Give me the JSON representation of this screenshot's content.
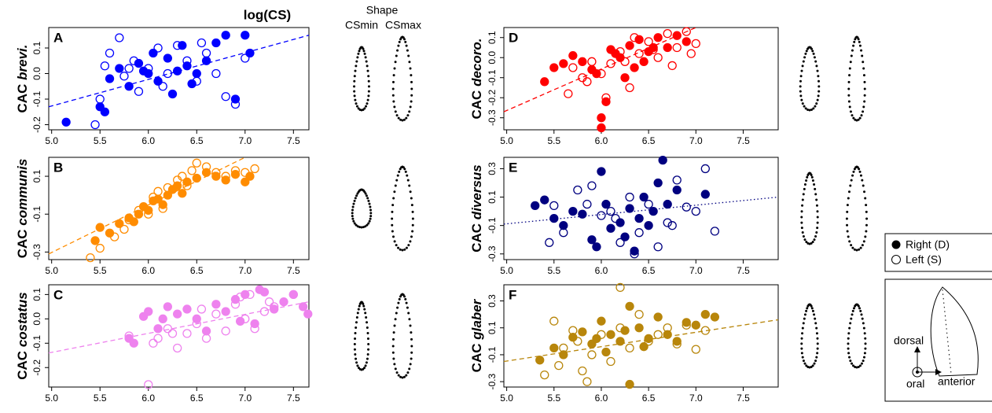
{
  "header": {
    "title": "log(CS)",
    "shape_title": "Shape",
    "shape_min": "CSmin",
    "shape_max": "CSmax"
  },
  "legend": {
    "entries": [
      {
        "label": "Right (D)",
        "marker": "filled"
      },
      {
        "label": "Left (S)",
        "marker": "open"
      }
    ]
  },
  "inset": {
    "dorsal": "dorsal",
    "oral": "oral",
    "anterior": "anterior"
  },
  "chart_data": [
    {
      "type": "scatter",
      "panel": "A",
      "ylabel_prefix": "CAC",
      "ylabel_species": "brevi.",
      "color": "#0000ff",
      "xlim": [
        4.97,
        7.66
      ],
      "ylim": [
        -0.22,
        0.18
      ],
      "xticks": [
        {
          "value": 5,
          "label": "5.0"
        },
        5.5,
        {
          "value": 6,
          "label": "6.0"
        },
        6.5,
        {
          "value": 7,
          "label": "7.0"
        },
        7.5
      ],
      "yticks": [
        -0.2,
        -0.1,
        {
          "value": 0,
          "label": "0.0"
        },
        0.1
      ],
      "fit": {
        "x": [
          4.97,
          7.66
        ],
        "y": [
          -0.13,
          0.15
        ],
        "style": "dashed"
      },
      "series": [
        {
          "marker": "filled",
          "x": [
            5.15,
            5.5,
            5.55,
            5.6,
            5.7,
            5.8,
            5.9,
            6.0,
            6.05,
            6.1,
            6.2,
            6.3,
            6.35,
            6.4,
            6.5,
            6.6,
            6.7,
            6.8,
            6.9,
            7.0,
            7.05,
            6.45,
            6.25,
            5.95
          ],
          "y": [
            -0.19,
            -0.13,
            -0.15,
            -0.02,
            0.02,
            -0.05,
            0.04,
            0.0,
            0.08,
            -0.03,
            0.06,
            0.01,
            0.11,
            0.03,
            0.0,
            0.05,
            0.12,
            0.15,
            -0.1,
            0.15,
            0.08,
            -0.04,
            -0.08,
            0.01
          ]
        },
        {
          "marker": "open",
          "x": [
            5.45,
            5.5,
            5.55,
            5.6,
            5.7,
            5.75,
            5.85,
            5.9,
            6.0,
            6.1,
            6.2,
            6.3,
            6.4,
            6.5,
            6.6,
            6.7,
            6.8,
            6.9,
            7.0,
            6.15,
            5.8,
            6.55
          ],
          "y": [
            -0.2,
            -0.1,
            0.03,
            0.08,
            0.14,
            -0.01,
            0.05,
            -0.07,
            0.02,
            0.1,
            0.0,
            0.11,
            0.05,
            -0.03,
            0.08,
            0.0,
            -0.09,
            -0.12,
            0.06,
            -0.05,
            0.02,
            0.12
          ]
        }
      ]
    },
    {
      "type": "scatter",
      "panel": "B",
      "ylabel_prefix": "CAC",
      "ylabel_species": "communis",
      "color": "#ff8c00",
      "xlim": [
        4.97,
        7.66
      ],
      "ylim": [
        -0.34,
        0.2
      ],
      "xticks": [
        {
          "value": 5,
          "label": "5.0"
        },
        5.5,
        {
          "value": 6,
          "label": "6.0"
        },
        6.5,
        {
          "value": 7,
          "label": "7.0"
        },
        7.5
      ],
      "yticks": [
        -0.3,
        -0.1,
        0.1
      ],
      "fit": {
        "x": [
          4.97,
          7.0
        ],
        "y": [
          -0.31,
          0.2
        ],
        "style": "dashed"
      },
      "series": [
        {
          "marker": "filled",
          "x": [
            5.45,
            5.5,
            5.6,
            5.7,
            5.8,
            5.9,
            5.95,
            6.0,
            6.05,
            6.1,
            6.2,
            6.25,
            6.3,
            6.4,
            6.5,
            6.6,
            6.7,
            6.8,
            6.9,
            7.0,
            7.05,
            6.15,
            5.85,
            6.35
          ],
          "y": [
            -0.24,
            -0.17,
            -0.2,
            -0.15,
            -0.12,
            -0.1,
            -0.06,
            -0.08,
            -0.03,
            -0.02,
            0.0,
            0.03,
            0.05,
            0.07,
            0.09,
            0.12,
            0.1,
            0.08,
            0.11,
            0.07,
            0.1,
            -0.05,
            -0.14,
            0.01
          ]
        },
        {
          "marker": "open",
          "x": [
            5.4,
            5.5,
            5.65,
            5.75,
            5.8,
            5.9,
            6.0,
            6.05,
            6.1,
            6.2,
            6.3,
            6.35,
            6.45,
            6.5,
            6.6,
            6.7,
            6.8,
            6.9,
            7.0,
            7.1,
            6.15,
            6.4
          ],
          "y": [
            -0.33,
            -0.28,
            -0.22,
            -0.18,
            -0.13,
            -0.08,
            -0.1,
            -0.01,
            0.02,
            0.04,
            0.08,
            0.1,
            0.13,
            0.17,
            0.15,
            0.12,
            0.1,
            0.13,
            0.12,
            0.14,
            -0.07,
            0.05
          ]
        }
      ]
    },
    {
      "type": "scatter",
      "panel": "C",
      "ylabel_prefix": "CAC",
      "ylabel_species": "costatus",
      "color": "#ee82ee",
      "xlim": [
        4.97,
        7.66
      ],
      "ylim": [
        -0.28,
        0.14
      ],
      "xticks": [
        {
          "value": 5,
          "label": "5.0"
        },
        5.5,
        {
          "value": 6,
          "label": "6.0"
        },
        6.5,
        {
          "value": 7,
          "label": "7.0"
        },
        7.5
      ],
      "yticks": [
        -0.2,
        -0.1,
        {
          "value": 0,
          "label": "0.0"
        },
        0.1
      ],
      "fit": {
        "x": [
          4.97,
          7.66
        ],
        "y": [
          -0.14,
          0.07
        ],
        "style": "dashed"
      },
      "series": [
        {
          "marker": "filled",
          "x": [
            5.8,
            5.85,
            5.95,
            6.0,
            6.1,
            6.15,
            6.2,
            6.3,
            6.4,
            6.5,
            6.6,
            6.7,
            6.8,
            6.9,
            7.0,
            7.1,
            7.2,
            7.3,
            7.4,
            7.5,
            7.6,
            7.65,
            6.95,
            7.15
          ],
          "y": [
            -0.08,
            -0.1,
            0.01,
            0.03,
            -0.04,
            0.0,
            0.05,
            0.02,
            0.04,
            0.0,
            -0.05,
            0.06,
            0.03,
            0.08,
            0.1,
            -0.02,
            0.11,
            0.04,
            0.07,
            0.1,
            0.05,
            0.02,
            -0.01,
            0.12
          ]
        },
        {
          "marker": "open",
          "x": [
            5.8,
            6.0,
            6.05,
            6.1,
            6.2,
            6.3,
            6.4,
            6.5,
            6.55,
            6.6,
            6.7,
            6.8,
            6.9,
            6.95,
            7.0,
            7.05,
            7.1,
            7.2,
            7.25,
            7.3,
            7.5,
            6.25
          ],
          "y": [
            -0.07,
            -0.27,
            -0.1,
            -0.08,
            -0.04,
            -0.12,
            -0.06,
            -0.02,
            0.04,
            -0.08,
            0.02,
            -0.05,
            0.06,
            0.09,
            0.0,
            0.1,
            -0.04,
            0.03,
            0.07,
            0.05,
            0.1,
            -0.06
          ]
        }
      ]
    },
    {
      "type": "scatter",
      "panel": "D",
      "ylabel_prefix": "CAC",
      "ylabel_species": "decoro.",
      "color": "#ff0000",
      "xlim": [
        4.97,
        7.87
      ],
      "ylim": [
        -0.36,
        0.15
      ],
      "xticks": [
        {
          "value": 5,
          "label": "5.0"
        },
        5.5,
        {
          "value": 6,
          "label": "6.0"
        },
        6.5,
        {
          "value": 7,
          "label": "7.0"
        },
        7.5
      ],
      "yticks": [
        -0.3,
        -0.2,
        -0.1,
        {
          "value": 0,
          "label": "0.0"
        },
        0.1
      ],
      "fit": {
        "x": [
          4.97,
          7.0
        ],
        "y": [
          -0.27,
          0.15
        ],
        "style": "dashed"
      },
      "series": [
        {
          "marker": "filled",
          "x": [
            5.4,
            5.5,
            5.6,
            5.7,
            5.8,
            5.9,
            6.0,
            6.0,
            6.05,
            6.1,
            6.2,
            6.3,
            6.35,
            6.4,
            6.5,
            6.6,
            6.7,
            6.8,
            6.9,
            6.45,
            6.25,
            6.15,
            5.95,
            6.55
          ],
          "y": [
            -0.12,
            -0.05,
            -0.03,
            0.01,
            -0.02,
            -0.06,
            -0.3,
            -0.35,
            -0.22,
            0.04,
            0.0,
            0.06,
            -0.05,
            0.09,
            0.03,
            0.1,
            0.05,
            0.11,
            0.08,
            -0.02,
            -0.1,
            0.02,
            -0.08,
            0.05
          ]
        },
        {
          "marker": "open",
          "x": [
            5.65,
            5.7,
            5.8,
            5.9,
            6.0,
            6.1,
            6.2,
            6.3,
            6.4,
            6.5,
            6.6,
            6.7,
            6.8,
            6.9,
            7.0,
            6.05,
            6.25,
            6.55,
            6.75,
            6.35,
            5.85,
            6.95
          ],
          "y": [
            -0.18,
            -0.05,
            -0.1,
            -0.02,
            -0.08,
            -0.03,
            0.03,
            -0.15,
            0.02,
            0.08,
            0.0,
            0.12,
            0.05,
            0.13,
            0.07,
            -0.2,
            -0.02,
            0.04,
            -0.04,
            0.1,
            -0.12,
            0.02
          ]
        }
      ]
    },
    {
      "type": "scatter",
      "panel": "E",
      "ylabel_prefix": "CAC",
      "ylabel_species": "diversus",
      "color": "#000080",
      "xlim": [
        4.97,
        7.87
      ],
      "ylim": [
        -0.34,
        0.38
      ],
      "xticks": [
        {
          "value": 5,
          "label": "5.0"
        },
        5.5,
        {
          "value": 6,
          "label": "6.0"
        },
        6.5,
        {
          "value": 7,
          "label": "7.0"
        },
        7.5
      ],
      "yticks": [
        -0.3,
        -0.1,
        0.1,
        0.3
      ],
      "fit": {
        "x": [
          4.97,
          7.87
        ],
        "y": [
          -0.09,
          0.1
        ],
        "style": "dotted"
      },
      "series": [
        {
          "marker": "filled",
          "x": [
            5.3,
            5.4,
            5.5,
            5.6,
            5.7,
            5.8,
            5.9,
            6.0,
            6.05,
            6.1,
            6.2,
            6.25,
            6.3,
            6.4,
            6.45,
            6.5,
            6.6,
            6.65,
            6.7,
            6.8,
            7.1,
            5.95,
            6.35,
            6.55
          ],
          "y": [
            0.04,
            0.08,
            -0.05,
            -0.1,
            0.0,
            -0.02,
            -0.2,
            0.28,
            0.05,
            -0.12,
            -0.08,
            -0.18,
            0.02,
            -0.05,
            0.1,
            -0.1,
            0.2,
            0.36,
            0.05,
            0.15,
            0.12,
            -0.25,
            -0.28,
            0.0
          ]
        },
        {
          "marker": "open",
          "x": [
            5.45,
            5.5,
            5.6,
            5.75,
            5.9,
            6.0,
            6.1,
            6.2,
            6.3,
            6.35,
            6.4,
            6.5,
            6.6,
            6.7,
            6.8,
            6.9,
            7.0,
            7.1,
            7.2,
            5.85,
            6.15,
            6.75
          ],
          "y": [
            -0.22,
            0.04,
            -0.15,
            0.15,
            0.18,
            -0.03,
            0.0,
            -0.22,
            0.1,
            -0.3,
            -0.15,
            0.05,
            -0.25,
            -0.08,
            0.22,
            0.03,
            0.0,
            0.3,
            -0.14,
            0.05,
            -0.05,
            -0.1
          ]
        }
      ]
    },
    {
      "type": "scatter",
      "panel": "F",
      "ylabel_prefix": "CAC",
      "ylabel_species": "glaber",
      "color": "#b8860b",
      "xlim": [
        4.97,
        7.87
      ],
      "ylim": [
        -0.34,
        0.42
      ],
      "xticks": [
        {
          "value": 5,
          "label": "5.0"
        },
        5.5,
        {
          "value": 6,
          "label": "6.0"
        },
        6.5,
        {
          "value": 7,
          "label": "7.0"
        },
        7.5
      ],
      "yticks": [
        -0.3,
        -0.1,
        0.1,
        0.3
      ],
      "fit": {
        "x": [
          4.97,
          7.87
        ],
        "y": [
          -0.15,
          0.16
        ],
        "style": "dashed"
      },
      "series": [
        {
          "marker": "filled",
          "x": [
            5.35,
            5.5,
            5.6,
            5.7,
            5.8,
            5.9,
            6.0,
            6.1,
            6.2,
            6.3,
            6.3,
            6.4,
            6.5,
            6.6,
            6.7,
            6.8,
            6.9,
            7.0,
            7.1,
            7.2,
            6.05,
            6.25,
            5.95,
            6.45
          ],
          "y": [
            -0.14,
            -0.05,
            -0.1,
            0.03,
            0.07,
            -0.02,
            0.15,
            0.05,
            0.0,
            0.26,
            -0.32,
            0.1,
            0.02,
            0.18,
            0.05,
            0.0,
            0.14,
            0.12,
            0.2,
            0.18,
            -0.08,
            0.08,
            0.02,
            -0.04
          ]
        },
        {
          "marker": "open",
          "x": [
            5.4,
            5.5,
            5.55,
            5.6,
            5.7,
            5.8,
            5.85,
            5.9,
            6.0,
            6.1,
            6.2,
            6.3,
            6.4,
            6.5,
            6.6,
            6.7,
            6.8,
            6.9,
            7.0,
            7.1,
            6.2,
            5.75
          ],
          "y": [
            -0.25,
            0.15,
            -0.18,
            -0.05,
            0.08,
            -0.22,
            -0.3,
            -0.1,
            0.05,
            -0.15,
            0.1,
            -0.05,
            0.2,
            0.0,
            0.05,
            0.1,
            -0.02,
            0.12,
            -0.06,
            0.08,
            0.4,
            0.0
          ]
        }
      ]
    }
  ]
}
